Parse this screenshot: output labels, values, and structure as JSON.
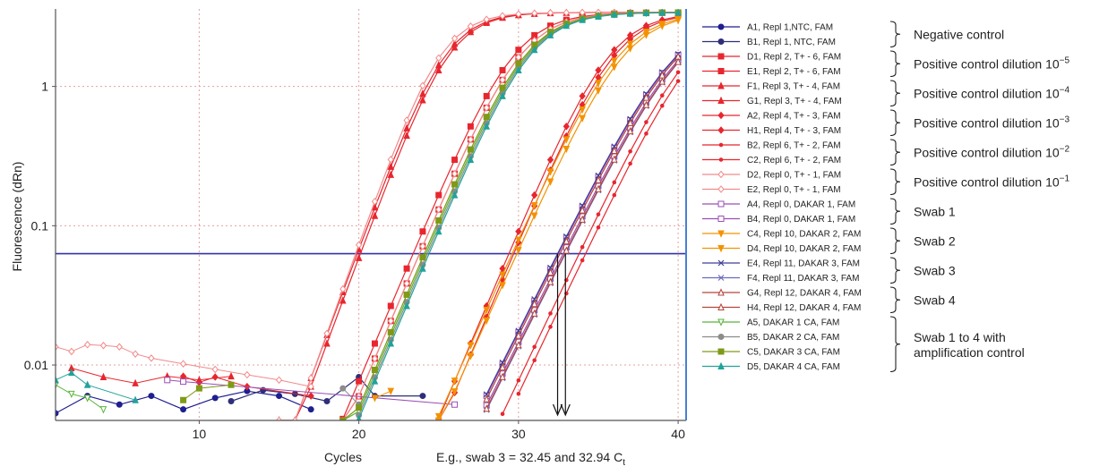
{
  "chart_data": {
    "type": "line",
    "title": "",
    "xlabel": "Cycles",
    "ylabel": "Fluorescence (dRn)",
    "xlim": [
      1,
      40.5
    ],
    "ylim": [
      0.004,
      3.6
    ],
    "y_scale": "log",
    "grid": true,
    "legend_position": "right",
    "x_ticks": [
      "10",
      "20",
      "30",
      "40"
    ],
    "y_ticks": [
      "0.01",
      "0.1",
      "1"
    ],
    "threshold": 0.063,
    "annotation": {
      "prefix": "E.g., swab 3 = 32.45 and 32.94 C",
      "sub": "t"
    },
    "marked_ct": [
      32.45,
      32.94
    ],
    "series": [
      {
        "name": "A1, Repl 1,NTC, FAM",
        "color": "#1f1f8f",
        "marker": "circle",
        "ct": null,
        "noise": [
          [
            1,
            0.0045
          ],
          [
            3,
            0.006
          ],
          [
            5,
            0.0052
          ],
          [
            7,
            0.006
          ],
          [
            9,
            0.0048
          ],
          [
            11,
            0.0058
          ],
          [
            13,
            0.0065
          ],
          [
            15,
            0.006
          ],
          [
            17,
            0.0048
          ]
        ]
      },
      {
        "name": "B1, Repl 1, NTC, FAM",
        "color": "#2e2e7a",
        "marker": "circle",
        "ct": null,
        "noise": [
          [
            12,
            0.0055
          ],
          [
            14,
            0.0066
          ],
          [
            16,
            0.0062
          ],
          [
            18,
            0.0055
          ],
          [
            20,
            0.0082
          ],
          [
            21,
            0.006
          ],
          [
            24,
            0.006
          ]
        ]
      },
      {
        "name": "D1, Repl 2, T+ - 6, FAM",
        "color": "#e8262e",
        "marker": "square",
        "ct": 23.4,
        "k": 1.6,
        "noise": []
      },
      {
        "name": "E1, Repl 2, T+ - 6, FAM",
        "color": "#e8262e",
        "marker": "square",
        "ct": 23.8,
        "k": 1.6,
        "noise": []
      },
      {
        "name": "F1, Repl 3, T+ - 4, FAM",
        "color": "#e8262e",
        "marker": "triangle",
        "ct": 19.9,
        "k": 1.4,
        "noise": [
          [
            2,
            0.0095
          ],
          [
            4,
            0.0082
          ],
          [
            6,
            0.0074
          ],
          [
            8,
            0.0083
          ],
          [
            10,
            0.0078
          ],
          [
            12,
            0.0083
          ]
        ]
      },
      {
        "name": "G1, Repl 3, T+ - 4, FAM",
        "color": "#e8262e",
        "marker": "triangle",
        "ct": 20.1,
        "k": 1.4,
        "noise": []
      },
      {
        "name": "A2, Repl 4, T+ - 3, FAM",
        "color": "#e8262e",
        "marker": "diamond",
        "ct": 29.4,
        "k": 1.6,
        "noise": [
          [
            9,
            0.0083
          ],
          [
            10,
            0.0075
          ],
          [
            11,
            0.0082
          ],
          [
            13,
            0.007
          ],
          [
            17,
            0.006
          ]
        ]
      },
      {
        "name": "H1, Repl 4, T+ - 3, FAM",
        "color": "#e8262e",
        "marker": "diamond",
        "ct": 29.7,
        "k": 1.6,
        "noise": []
      },
      {
        "name": "B2, Repl 6, T+ - 2, FAM",
        "color": "#e8262e",
        "marker": "star",
        "ct": 33.8,
        "k": 1.8,
        "noise": []
      },
      {
        "name": "C2, Repl 6, T+ - 2, FAM",
        "color": "#e8262e",
        "marker": "star",
        "ct": 34.2,
        "k": 1.8,
        "noise": []
      },
      {
        "name": "D2, Repl 0, T+ - 1, FAM",
        "color": "#f28a8a",
        "marker": "diamond-open",
        "ct": 19.8,
        "k": 1.35,
        "noise": [
          [
            1,
            0.0135
          ],
          [
            2,
            0.0125
          ],
          [
            3,
            0.014
          ],
          [
            4,
            0.0138
          ],
          [
            5,
            0.0135
          ],
          [
            6,
            0.012
          ],
          [
            7,
            0.0112
          ],
          [
            9,
            0.0102
          ],
          [
            11,
            0.0093
          ],
          [
            13,
            0.0085
          ],
          [
            15,
            0.0078
          ],
          [
            17,
            0.007
          ]
        ]
      },
      {
        "name": "E2, Repl 0, T+ - 1, FAM",
        "color": "#f28a8a",
        "marker": "diamond-open",
        "ct": 23.8,
        "k": 1.6,
        "noise": []
      },
      {
        "name": "A4, Repl 0, DAKAR 1, FAM",
        "color": "#9a4fb5",
        "marker": "square-open",
        "ct": 32.5,
        "k": 1.9,
        "noise": [
          [
            8,
            0.0078
          ],
          [
            9,
            0.0076
          ],
          [
            26,
            0.0052
          ]
        ]
      },
      {
        "name": "B4, Repl 0, DAKAR 1, FAM",
        "color": "#9a4fb5",
        "marker": "square-open",
        "ct": 32.8,
        "k": 1.9,
        "noise": []
      },
      {
        "name": "C4, Repl 10, DAKAR 2, FAM",
        "color": "#f39200",
        "marker": "triangle-down",
        "ct": 29.6,
        "k": 1.7,
        "noise": [
          [
            21,
            0.0058
          ],
          [
            22,
            0.0065
          ]
        ]
      },
      {
        "name": "D4, Repl 10, DAKAR 2, FAM",
        "color": "#f39200",
        "marker": "triangle-down",
        "ct": 29.9,
        "k": 1.7,
        "noise": []
      },
      {
        "name": "E4, Repl 11, DAKAR 3, FAM",
        "color": "#3e3e98",
        "marker": "x",
        "ct": 32.45,
        "k": 1.9,
        "noise": []
      },
      {
        "name": "F4, Repl 11, DAKAR 3, FAM",
        "color": "#6a6ac0",
        "marker": "x",
        "ct": 32.94,
        "k": 1.9,
        "noise": []
      },
      {
        "name": "G4, Repl 12, DAKAR 4, FAM",
        "color": "#b5443a",
        "marker": "triangle-open",
        "ct": 32.6,
        "k": 1.9,
        "noise": []
      },
      {
        "name": "H4, Repl 12, DAKAR 4, FAM",
        "color": "#b5443a",
        "marker": "triangle-open",
        "ct": 32.9,
        "k": 1.9,
        "noise": []
      },
      {
        "name": "A5, DAKAR 1 CA, FAM",
        "color": "#5ab43c",
        "marker": "triangle-down-open",
        "ct": 24.2,
        "k": 1.6,
        "noise": [
          [
            1,
            0.0072
          ],
          [
            2,
            0.0062
          ],
          [
            3,
            0.0058
          ],
          [
            4,
            0.0048
          ]
        ]
      },
      {
        "name": "B5, DAKAR 2 CA, FAM",
        "color": "#8c8c8c",
        "marker": "circle",
        "ct": 24.3,
        "k": 1.6,
        "noise": [
          [
            19,
            0.0068
          ],
          [
            20,
            0.0052
          ]
        ]
      },
      {
        "name": "C5, DAKAR 3 CA, FAM",
        "color": "#7f9a16",
        "marker": "square",
        "ct": 24.1,
        "k": 1.6,
        "noise": [
          [
            9,
            0.0056
          ],
          [
            10,
            0.0068
          ],
          [
            12,
            0.0072
          ]
        ]
      },
      {
        "name": "D5, DAKAR 4 CA, FAM",
        "color": "#20a39a",
        "marker": "triangle",
        "ct": 24.4,
        "k": 1.6,
        "noise": [
          [
            1,
            0.0078
          ],
          [
            2,
            0.0088
          ],
          [
            3,
            0.0072
          ],
          [
            6,
            0.0056
          ]
        ]
      }
    ],
    "groups": [
      {
        "label": "Negative control",
        "sup": "",
        "members": [
          0,
          1
        ]
      },
      {
        "label": "Positive control dilution 10",
        "sup": "−5",
        "members": [
          2,
          3
        ]
      },
      {
        "label": "Positive control dilution 10",
        "sup": "−4",
        "members": [
          4,
          5
        ]
      },
      {
        "label": "Positive control dilution 10",
        "sup": "−3",
        "members": [
          6,
          7
        ]
      },
      {
        "label": "Positive control dilution 10",
        "sup": "−2",
        "members": [
          8,
          9
        ]
      },
      {
        "label": "Positive control dilution 10",
        "sup": "−1",
        "members": [
          10,
          11
        ]
      },
      {
        "label": "Swab 1",
        "sup": "",
        "members": [
          12,
          13
        ]
      },
      {
        "label": "Swab 2",
        "sup": "",
        "members": [
          14,
          15
        ]
      },
      {
        "label": "Swab 3",
        "sup": "",
        "members": [
          16,
          17
        ]
      },
      {
        "label": "Swab 4",
        "sup": "",
        "members": [
          18,
          19
        ]
      },
      {
        "label": "Swab 1 to 4 with",
        "label2": "amplification control",
        "sup": "",
        "members": [
          20,
          21,
          22,
          23
        ]
      }
    ],
    "colors": {
      "threshold": "#3333aa",
      "grid": "#e6a0a0",
      "axis": "#555555",
      "right_edge": "#4a7fd4",
      "arrow": "#111111"
    }
  }
}
